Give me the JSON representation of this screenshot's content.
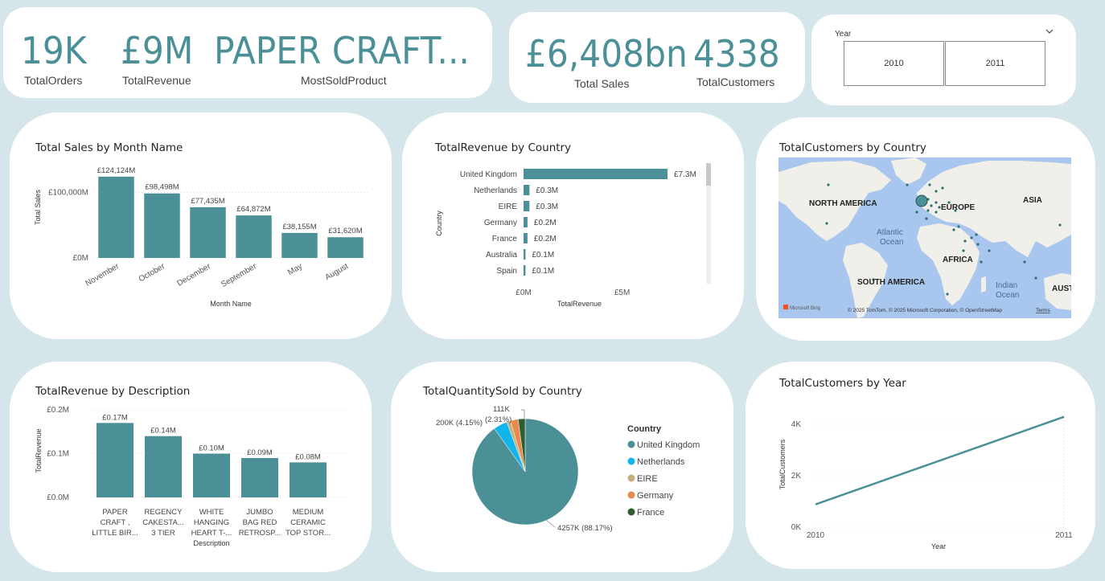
{
  "kpis": {
    "total_orders": {
      "value": "19K",
      "label": "TotalOrders"
    },
    "total_revenue": {
      "value": "£9M",
      "label": "TotalRevenue"
    },
    "most_sold_product": {
      "value": "PAPER CRAFT...",
      "label": "MostSoldProduct"
    },
    "total_sales": {
      "value": "£6,408bn",
      "label": "Total Sales"
    },
    "total_customers": {
      "value": "4338",
      "label": "TotalCustomers"
    }
  },
  "slicer": {
    "title": "Year",
    "options": [
      "2010",
      "2011"
    ]
  },
  "map": {
    "title": "TotalCustomers by Country",
    "labels": {
      "north_america": "NORTH AMERICA",
      "europe": "EUROPE",
      "asia": "ASIA",
      "africa": "AFRICA",
      "south_america": "SOUTH AMERICA",
      "atlantic": "Atlantic",
      "atlantic2": "Ocean",
      "indian": "Indian",
      "indian2": "Ocean",
      "aust": "AUST"
    },
    "attribution": "© 2025 TomTom, © 2025 Microsoft Corporation, © OpenStreetMap",
    "terms": "Terms",
    "bing": "Microsoft Bing",
    "colors": {
      "water": "#a9c6ee",
      "land": "#f1efe9",
      "dot": "#2f6f75"
    }
  },
  "chart_data": [
    {
      "type": "bar",
      "title": "Total Sales by Month Name",
      "xlabel": "Month Name",
      "ylabel": "Total Sales",
      "categories": [
        "November",
        "October",
        "December",
        "September",
        "May",
        "August"
      ],
      "values": [
        124124,
        98498,
        77435,
        64872,
        38155,
        31620
      ],
      "data_labels": [
        "£124,124M",
        "£98,498M",
        "£77,435M",
        "£64,872M",
        "£38,155M",
        "£31,620M"
      ],
      "yticks": [
        {
          "v": 0,
          "label": "£0M"
        },
        {
          "v": 100000,
          "label": "£100,000M"
        }
      ],
      "ylim": [
        0,
        130000
      ],
      "color": "#4a9096"
    },
    {
      "type": "bar",
      "orientation": "horizontal",
      "title": "TotalRevenue by Country",
      "xlabel": "TotalRevenue",
      "ylabel": "Country",
      "categories": [
        "United Kingdom",
        "Netherlands",
        "EIRE",
        "Germany",
        "France",
        "Australia",
        "Spain"
      ],
      "values": [
        7.3,
        0.3,
        0.3,
        0.2,
        0.2,
        0.1,
        0.1
      ],
      "data_labels": [
        "£7.3M",
        "£0.3M",
        "£0.3M",
        "£0.2M",
        "£0.2M",
        "£0.1M",
        "£0.1M"
      ],
      "xticks": [
        {
          "v": 0,
          "label": "£0M"
        },
        {
          "v": 5,
          "label": "£5M"
        }
      ],
      "xlim": [
        0,
        7.3
      ],
      "color": "#4a9096"
    },
    {
      "type": "bar",
      "title": "TotalRevenue by Description",
      "xlabel": "Description",
      "ylabel": "TotalRevenue",
      "categories": [
        [
          "PAPER",
          "CRAFT ,",
          "LITTLE BIR..."
        ],
        [
          "REGENCY",
          "CAKESTA...",
          "3 TIER"
        ],
        [
          "WHITE",
          "HANGING",
          "HEART T-..."
        ],
        [
          "JUMBO",
          "BAG RED",
          "RETROSP..."
        ],
        [
          "MEDIUM",
          "CERAMIC",
          "TOP STOR..."
        ]
      ],
      "values": [
        0.17,
        0.14,
        0.1,
        0.09,
        0.08
      ],
      "data_labels": [
        "£0.17M",
        "£0.14M",
        "£0.10M",
        "£0.09M",
        "£0.08M"
      ],
      "yticks": [
        {
          "v": 0,
          "label": "£0.0M"
        },
        {
          "v": 0.1,
          "label": "£0.1M"
        },
        {
          "v": 0.2,
          "label": "£0.2M"
        }
      ],
      "ylim": [
        0,
        0.2
      ],
      "color": "#4a9096"
    },
    {
      "type": "pie",
      "title": "TotalQuantitySold by Country",
      "legend_title": "Country",
      "legend_position": "right",
      "slices": [
        {
          "name": "United Kingdom",
          "value": 4257,
          "color": "#4a9096"
        },
        {
          "name": "Netherlands",
          "value": 200,
          "color": "#12b4ec"
        },
        {
          "name": "EIRE",
          "value": 55,
          "color": "#c4b07c"
        },
        {
          "name": "Germany",
          "value": 111,
          "color": "#e8894d"
        },
        {
          "name": "France",
          "value": 100,
          "color": "#2f5d32"
        }
      ],
      "data_labels": [
        {
          "text": "4257K (88.17%)"
        },
        {
          "text": "200K (4.15%)"
        },
        {
          "text": "111K"
        },
        {
          "text": "(2.31%)"
        }
      ]
    },
    {
      "type": "line",
      "title": "TotalCustomers by Year",
      "xlabel": "Year",
      "ylabel": "TotalCustomers",
      "x": [
        "2010",
        "2011"
      ],
      "values": [
        885,
        4290
      ],
      "yticks": [
        {
          "v": 0,
          "label": "0K"
        },
        {
          "v": 2000,
          "label": "2K"
        },
        {
          "v": 4000,
          "label": "4K"
        }
      ],
      "ylim": [
        0,
        4500
      ],
      "color": "#4a9096"
    }
  ]
}
